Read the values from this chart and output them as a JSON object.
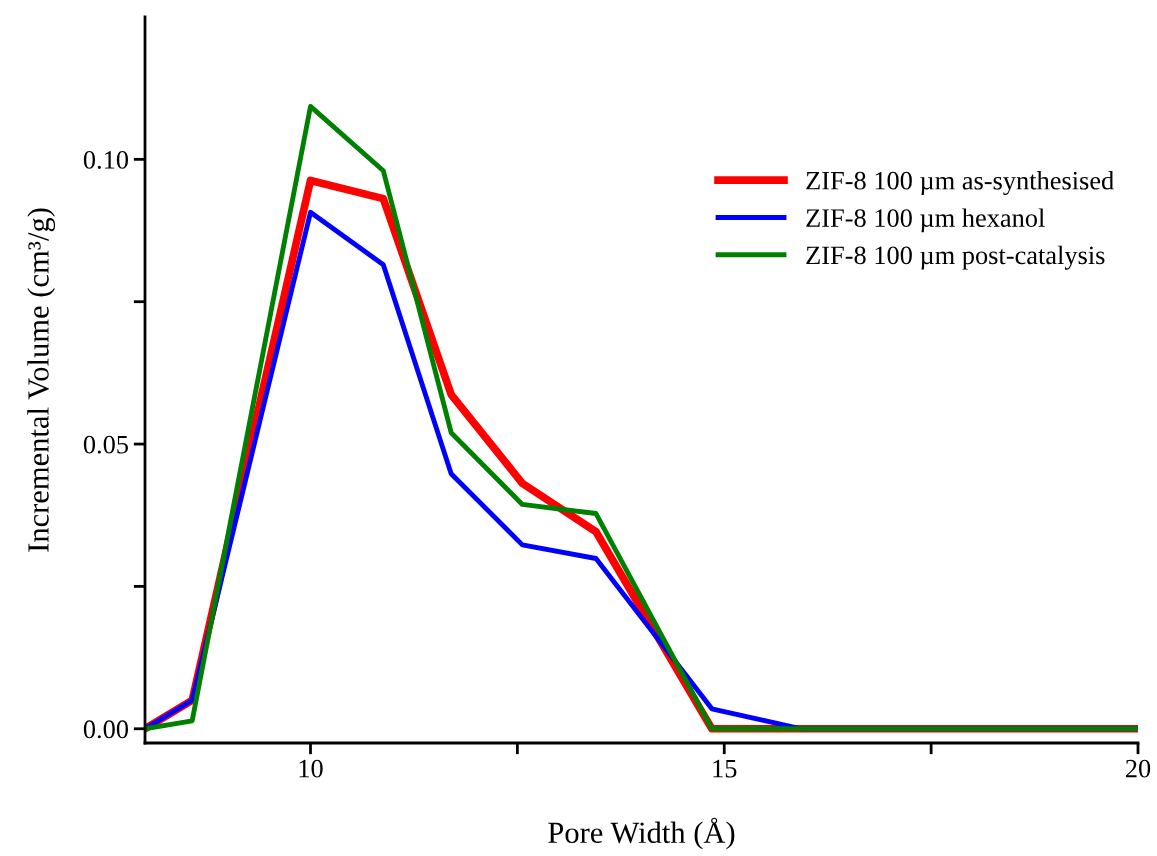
{
  "chart_data": {
    "type": "line",
    "xlabel": "Pore Width (Å)",
    "ylabel": "Incremental Volume (cm³/g)",
    "x": [
      8.0,
      8.57,
      10.0,
      10.88,
      11.7,
      12.56,
      13.45,
      14.85,
      15.93,
      20.0
    ],
    "series": [
      {
        "name": "ZIF-8 100 µm as-synthesised",
        "color": "#ff0000",
        "values": [
          0,
          0.005,
          0.0963,
          0.0931,
          0.0587,
          0.0431,
          0.0346,
          0,
          0,
          0
        ]
      },
      {
        "name": "ZIF-8 100 µm hexanol",
        "color": "#0000ff",
        "values": [
          0,
          0.005,
          0.0907,
          0.0815,
          0.0448,
          0.0323,
          0.0299,
          0.0035,
          0,
          0
        ]
      },
      {
        "name": "ZIF-8 100 µm post-catalysis",
        "color": "#008000",
        "values": [
          0,
          0.0014,
          0.1093,
          0.098,
          0.052,
          0.0394,
          0.0378,
          0,
          0,
          0
        ]
      }
    ],
    "xlim": [
      8,
      20
    ],
    "ylim": [
      -0.0025,
      0.125
    ],
    "xticks": [
      10,
      {
        "value": 12.5,
        "label": null
      },
      15,
      {
        "value": 17.5,
        "label": null
      },
      20
    ],
    "yticks": [
      {
        "value": 0,
        "label": "0.00"
      },
      {
        "value": 0.025,
        "label": null
      },
      {
        "value": 0.05,
        "label": "0.05"
      },
      {
        "value": 0.075,
        "label": null
      },
      {
        "value": 0.1,
        "label": "0.10"
      }
    ],
    "legend": "right",
    "grid": false,
    "marker": "none",
    "line_style": "solid"
  }
}
